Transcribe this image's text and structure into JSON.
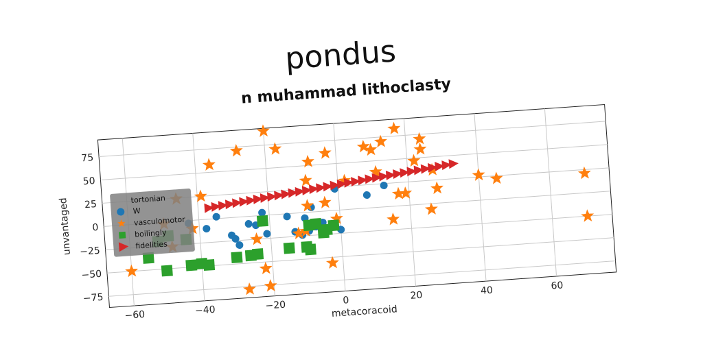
{
  "chart_data": {
    "type": "scatter",
    "title": "pondus",
    "subtitle": "n muhammad lithoclasty",
    "xlabel": "metacoracoid",
    "ylabel": "unvantaged",
    "xlim": [
      -67,
      77
    ],
    "ylim": [
      -87,
      93
    ],
    "xticks": [
      -60,
      -40,
      -20,
      0,
      20,
      40,
      60
    ],
    "yticks": [
      -75,
      -50,
      -25,
      0,
      25,
      50,
      75
    ],
    "grid": true,
    "legend": {
      "placement": "center-left",
      "title": "tortonian",
      "entries": [
        "W",
        "vasculomotor",
        "boilingly",
        "fidelities"
      ]
    },
    "series": [
      {
        "name": "W",
        "marker": "circle",
        "color": "#1f77b4",
        "points": [
          [
            -43,
            -3
          ],
          [
            -35,
            2
          ],
          [
            -31,
            -19
          ],
          [
            -30,
            -23
          ],
          [
            -29,
            -30
          ],
          [
            -24,
            -10
          ],
          [
            -22,
            3
          ],
          [
            -21,
            -20
          ],
          [
            -15,
            -3
          ],
          [
            -13,
            -20
          ],
          [
            -11,
            -24
          ],
          [
            -10,
            -6
          ],
          [
            -9,
            -20
          ],
          [
            -8,
            5
          ],
          [
            -7,
            -16
          ],
          [
            -5,
            -12
          ],
          [
            -3,
            -18
          ],
          [
            -2,
            -15
          ],
          [
            -1,
            23
          ],
          [
            0,
            -21
          ],
          [
            8,
            14
          ],
          [
            13,
            23
          ],
          [
            -38,
            -10
          ],
          [
            -26,
            -8
          ]
        ]
      },
      {
        "name": "vasculomotor",
        "marker": "star",
        "color": "#ff7f0e",
        "points": [
          [
            -60,
            -50
          ],
          [
            -50,
            -2
          ],
          [
            -48,
            -27
          ],
          [
            -42,
            -9
          ],
          [
            -39,
            25
          ],
          [
            -36,
            58
          ],
          [
            -28,
            71
          ],
          [
            -24,
            -25
          ],
          [
            -22,
            -57
          ],
          [
            -21,
            -76
          ],
          [
            -27,
            -78
          ],
          [
            -20,
            90
          ],
          [
            -17,
            70
          ],
          [
            -9,
            34
          ],
          [
            -12,
            -22
          ],
          [
            -10,
            -20
          ],
          [
            -8,
            54
          ],
          [
            -3,
            62
          ],
          [
            -3,
            -56
          ],
          [
            -1,
            -9
          ],
          [
            -4,
            9
          ],
          [
            -9,
            7
          ],
          [
            2,
            31
          ],
          [
            8,
            66
          ],
          [
            10,
            62
          ],
          [
            11,
            38
          ],
          [
            13,
            70
          ],
          [
            15,
            -14
          ],
          [
            17,
            13
          ],
          [
            17,
            83
          ],
          [
            19,
            13
          ],
          [
            22,
            47
          ],
          [
            24,
            59
          ],
          [
            24,
            70
          ],
          [
            26,
            -6
          ],
          [
            27,
            36
          ],
          [
            28,
            16
          ],
          [
            40,
            27
          ],
          [
            45,
            22
          ],
          [
            70,
            21
          ],
          [
            70,
            -25
          ],
          [
            -46,
            24
          ]
        ]
      },
      {
        "name": "boilingly",
        "marker": "square",
        "color": "#2ca02c",
        "points": [
          [
            -55,
            -37
          ],
          [
            -52,
            -20
          ],
          [
            -50,
            -52
          ],
          [
            -44,
            -20
          ],
          [
            -43,
            -48
          ],
          [
            -40,
            -47
          ],
          [
            -38,
            -49
          ],
          [
            -30,
            -43
          ],
          [
            -26,
            -42
          ],
          [
            -24,
            -41
          ],
          [
            -22,
            -6
          ],
          [
            -15,
            -37
          ],
          [
            -10,
            -37
          ],
          [
            -9,
            -40
          ],
          [
            -9,
            -14
          ],
          [
            -7,
            -13
          ],
          [
            -5,
            -23
          ],
          [
            -4,
            -20
          ],
          [
            -2,
            -16
          ],
          [
            -49,
            -15
          ]
        ]
      },
      {
        "name": "fidelities",
        "marker": "triangle-right",
        "color": "#d62728",
        "x_range": [
          -37,
          33
        ],
        "y_range": [
          12,
          41
        ],
        "count": 36
      }
    ]
  }
}
